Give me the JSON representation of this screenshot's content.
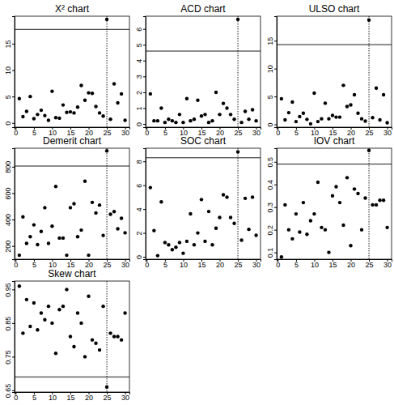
{
  "chart_data": [
    {
      "type": "scatter",
      "title": "X² chart",
      "x": [
        1,
        2,
        3,
        4,
        5,
        6,
        7,
        8,
        9,
        10,
        11,
        12,
        13,
        14,
        15,
        16,
        17,
        18,
        19,
        20,
        21,
        22,
        23,
        24,
        25,
        26,
        27,
        28,
        29,
        30
      ],
      "values": [
        4.6,
        1.2,
        2.2,
        5.0,
        0.8,
        1.6,
        2.4,
        1.4,
        0.5,
        6.0,
        1.0,
        0.9,
        3.4,
        2.0,
        2.1,
        1.9,
        3.0,
        7.1,
        4.3,
        5.7,
        5.6,
        3.1,
        1.9,
        1.3,
        19.6,
        0.7,
        7.4,
        3.8,
        5.5,
        0.5
      ],
      "xlim": [
        -0.3,
        31.2
      ],
      "xticks": [
        0,
        5,
        10,
        15,
        20,
        25,
        30
      ],
      "ylim": [
        -0.8,
        20.2
      ],
      "yticks": [
        0,
        5,
        10,
        15
      ],
      "limit": 17.7,
      "vline": 25,
      "marker": "circle",
      "color": "#000000"
    },
    {
      "type": "scatter",
      "title": "ACD chart",
      "x": [
        1,
        2,
        3,
        4,
        5,
        6,
        7,
        8,
        9,
        10,
        11,
        12,
        13,
        14,
        15,
        16,
        17,
        18,
        19,
        20,
        21,
        22,
        23,
        24,
        25,
        26,
        27,
        28,
        29,
        30
      ],
      "values": [
        1.9,
        0.2,
        0.2,
        1.0,
        0.1,
        0.3,
        0.2,
        0.1,
        0.6,
        0.1,
        1.6,
        0.2,
        0.3,
        1.5,
        0.5,
        0.6,
        0.1,
        0.2,
        2.0,
        0.6,
        1.3,
        1.0,
        0.6,
        0.3,
        6.6,
        0.1,
        0.8,
        0.3,
        0.9,
        0.2
      ],
      "xlim": [
        -0.3,
        31.2
      ],
      "xticks": [
        0,
        5,
        10,
        15,
        20,
        25,
        30
      ],
      "ylim": [
        -0.2,
        6.8
      ],
      "yticks": [
        0,
        1,
        2,
        3,
        4,
        5,
        6
      ],
      "limit": 4.6,
      "vline": 25,
      "marker": "circle",
      "color": "#000000"
    },
    {
      "type": "scatter",
      "title": "ULSO chart",
      "x": [
        1,
        2,
        3,
        4,
        5,
        6,
        7,
        8,
        9,
        10,
        11,
        12,
        13,
        14,
        15,
        16,
        17,
        18,
        19,
        20,
        21,
        22,
        23,
        24,
        25,
        26,
        27,
        28,
        29,
        30
      ],
      "values": [
        4.6,
        0.8,
        2.1,
        4.0,
        0.5,
        1.4,
        2.0,
        0.9,
        0.1,
        5.6,
        0.5,
        1.0,
        3.8,
        1.0,
        1.6,
        1.3,
        1.3,
        7.0,
        3.2,
        3.5,
        5.3,
        2.0,
        1.0,
        0.6,
        18.7,
        1.2,
        6.5,
        0.8,
        5.3,
        0.3
      ],
      "xlim": [
        -0.3,
        31.2
      ],
      "xticks": [
        0,
        5,
        10,
        15,
        20,
        25,
        30
      ],
      "ylim": [
        -0.5,
        19.4
      ],
      "yticks": [
        0,
        5,
        10,
        15
      ],
      "limit": 14.3,
      "vline": 25,
      "marker": "circle",
      "color": "#000000"
    },
    {
      "type": "scatter",
      "title": "Demerit chart",
      "x": [
        1,
        2,
        3,
        4,
        5,
        6,
        7,
        8,
        9,
        10,
        11,
        12,
        13,
        14,
        15,
        16,
        17,
        18,
        19,
        20,
        21,
        22,
        23,
        24,
        25,
        26,
        27,
        28,
        29,
        30
      ],
      "values": [
        130,
        420,
        220,
        270,
        360,
        210,
        310,
        490,
        220,
        350,
        650,
        260,
        260,
        130,
        490,
        520,
        270,
        320,
        690,
        130,
        530,
        450,
        510,
        280,
        920,
        440,
        460,
        330,
        410,
        300
      ],
      "xlim": [
        -0.3,
        31.2
      ],
      "xticks": [
        0,
        5,
        10,
        15,
        20,
        25,
        30
      ],
      "ylim": [
        100,
        940
      ],
      "yticks": [
        200,
        400,
        600,
        800
      ],
      "limit": 805,
      "vline": 25,
      "marker": "circle",
      "color": "#000000"
    },
    {
      "type": "scatter",
      "title": "SOC chart",
      "x": [
        1,
        2,
        3,
        4,
        5,
        6,
        7,
        8,
        9,
        10,
        11,
        12,
        13,
        14,
        15,
        16,
        17,
        18,
        19,
        20,
        21,
        22,
        23,
        24,
        25,
        26,
        27,
        28,
        29,
        30
      ],
      "values": [
        5.8,
        2.2,
        0.1,
        4.6,
        1.2,
        1.0,
        0.6,
        0.8,
        1.2,
        0.3,
        1.3,
        3.6,
        1.0,
        2.0,
        4.8,
        1.3,
        3.8,
        1.0,
        2.4,
        3.3,
        5.2,
        5.0,
        3.3,
        2.8,
        8.8,
        1.4,
        4.9,
        2.3,
        5.0,
        1.8
      ],
      "xlim": [
        -0.3,
        31.2
      ],
      "xticks": [
        0,
        5,
        10,
        15,
        20,
        25,
        30
      ],
      "ylim": [
        -0.2,
        9.1
      ],
      "yticks": [
        0,
        2,
        4,
        6,
        8
      ],
      "limit": 8.3,
      "vline": 25,
      "marker": "circle",
      "color": "#000000"
    },
    {
      "type": "scatter",
      "title": "IOV chart",
      "x": [
        1,
        2,
        3,
        4,
        5,
        6,
        7,
        8,
        9,
        10,
        11,
        12,
        13,
        14,
        15,
        16,
        17,
        18,
        19,
        20,
        21,
        22,
        23,
        24,
        25,
        26,
        27,
        28,
        29,
        30
      ],
      "values": [
        0.08,
        0.31,
        0.2,
        0.16,
        0.27,
        0.19,
        0.32,
        0.18,
        0.24,
        0.27,
        0.41,
        0.21,
        0.2,
        0.1,
        0.35,
        0.39,
        0.32,
        0.22,
        0.43,
        0.13,
        0.38,
        0.36,
        0.2,
        0.34,
        0.55,
        0.31,
        0.31,
        0.33,
        0.33,
        0.21
      ],
      "xlim": [
        -0.3,
        31.2
      ],
      "xticks": [
        0,
        5,
        10,
        15,
        20,
        25,
        30
      ],
      "ylim": [
        0.07,
        0.56
      ],
      "yticks": [
        0.1,
        0.2,
        0.3,
        0.4,
        0.5
      ],
      "limit": 0.49,
      "vline": 25,
      "marker": "circle",
      "color": "#000000"
    },
    {
      "type": "scatter",
      "title": "Skew chart",
      "x": [
        1,
        2,
        3,
        4,
        5,
        6,
        7,
        8,
        9,
        10,
        11,
        12,
        13,
        14,
        15,
        16,
        17,
        18,
        19,
        20,
        21,
        22,
        23,
        24,
        25,
        26,
        27,
        28,
        29,
        30
      ],
      "values": [
        0.96,
        0.82,
        0.92,
        0.84,
        0.91,
        0.83,
        0.88,
        0.86,
        0.9,
        0.85,
        0.76,
        0.89,
        0.9,
        0.95,
        0.81,
        0.78,
        0.88,
        0.85,
        0.75,
        0.93,
        0.8,
        0.79,
        0.77,
        0.9,
        0.66,
        0.82,
        0.81,
        0.81,
        0.8,
        0.88
      ],
      "xlim": [
        -0.3,
        31.2
      ],
      "xticks": [
        0,
        5,
        10,
        15,
        20,
        25,
        30
      ],
      "ylim": [
        0.645,
        0.975
      ],
      "yticks": [
        0.65,
        0.75,
        0.85,
        0.95
      ],
      "limit": 0.69,
      "vline": 25,
      "marker": "circle",
      "color": "#000000"
    }
  ]
}
